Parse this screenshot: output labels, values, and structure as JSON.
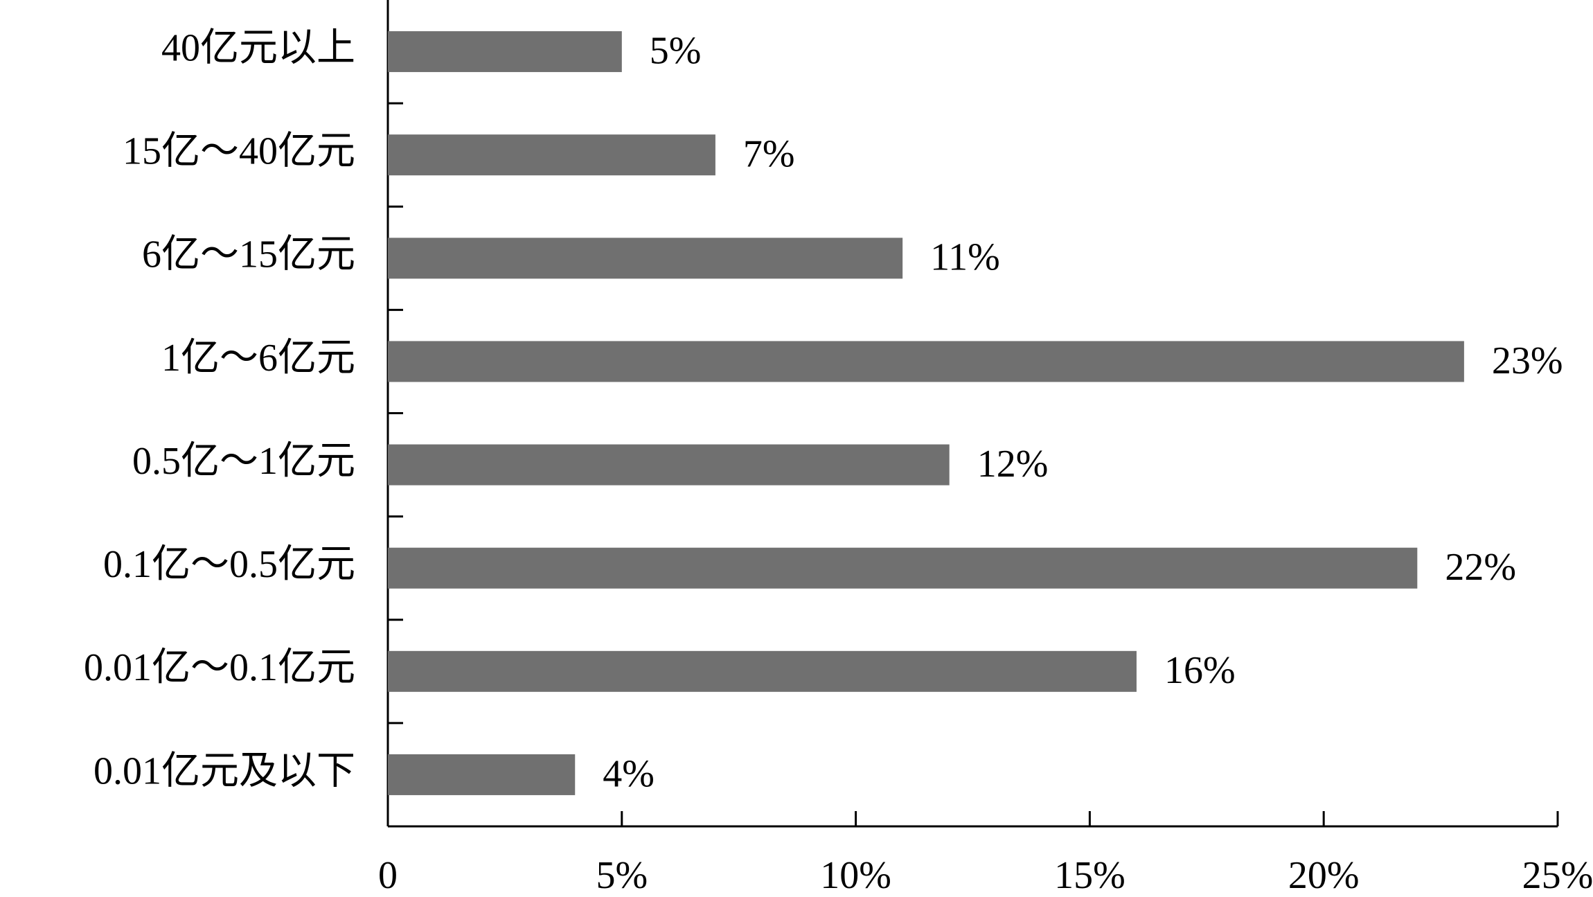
{
  "chart_data": {
    "type": "bar",
    "orientation": "horizontal",
    "categories": [
      "40亿元以上",
      "15亿～40亿元",
      "6亿～15亿元",
      "1亿～6亿元",
      "0.5亿～1亿元",
      "0.1亿～0.5亿元",
      "0.01亿～0.1亿元",
      "0.01亿元及以下"
    ],
    "values": [
      5,
      7,
      11,
      23,
      12,
      22,
      16,
      4
    ],
    "value_labels": [
      "5%",
      "7%",
      "11%",
      "23%",
      "12%",
      "22%",
      "16%",
      "4%"
    ],
    "color": "#707070",
    "xlim": [
      0,
      25
    ],
    "xticks": [
      0,
      {
        "value": 5,
        "label": "5%"
      },
      {
        "value": 10,
        "label": "10%"
      },
      {
        "value": 15,
        "label": "15%"
      },
      {
        "value": 20,
        "label": "20%"
      },
      {
        "value": 25,
        "label": "25%"
      }
    ],
    "grid": false
  }
}
